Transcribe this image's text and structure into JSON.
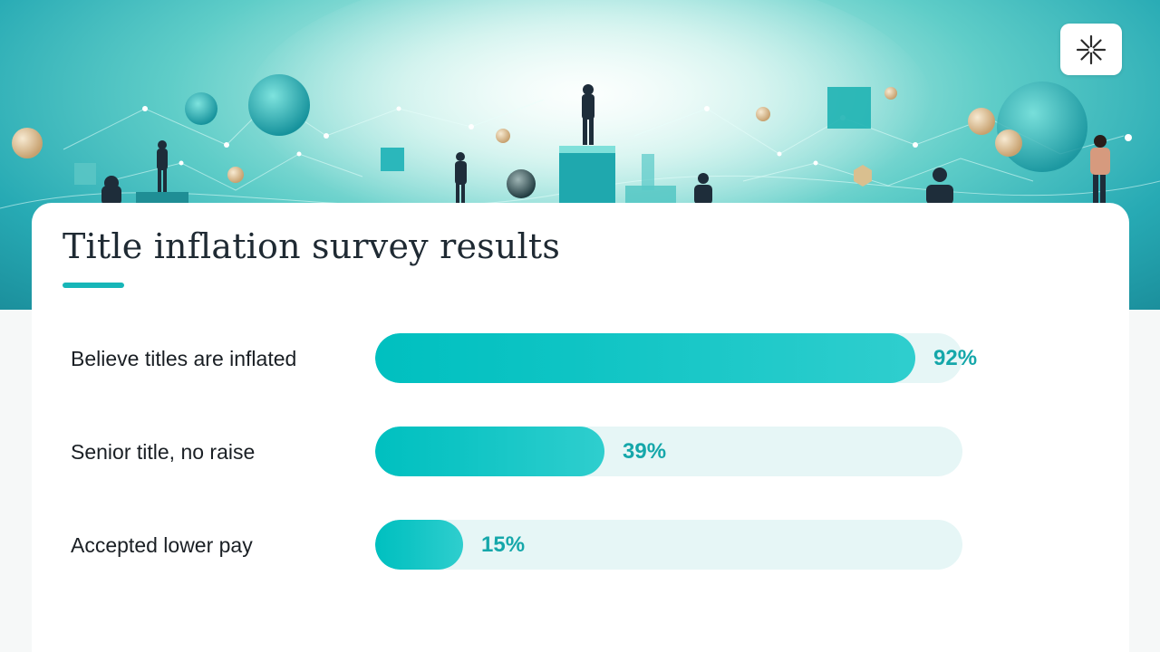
{
  "slide": {
    "title": "Title inflation survey results"
  },
  "logo": {
    "icon": "asterisk-logo-icon"
  },
  "colors": {
    "accent": "#17b6b8",
    "bar_fill": "#00c0c0",
    "bar_track": "#e6f6f6",
    "value_text": "#15a7aa"
  },
  "chart_data": {
    "type": "bar",
    "orientation": "horizontal",
    "categories": [
      "Believe titles are inflated",
      "Senior title, no raise",
      "Accepted lower pay"
    ],
    "values": [
      92,
      39,
      15
    ],
    "value_labels": [
      "92%",
      "39%",
      "15%"
    ],
    "xlim": [
      0,
      100
    ],
    "unit": "%",
    "grid": false,
    "legend": "none"
  }
}
